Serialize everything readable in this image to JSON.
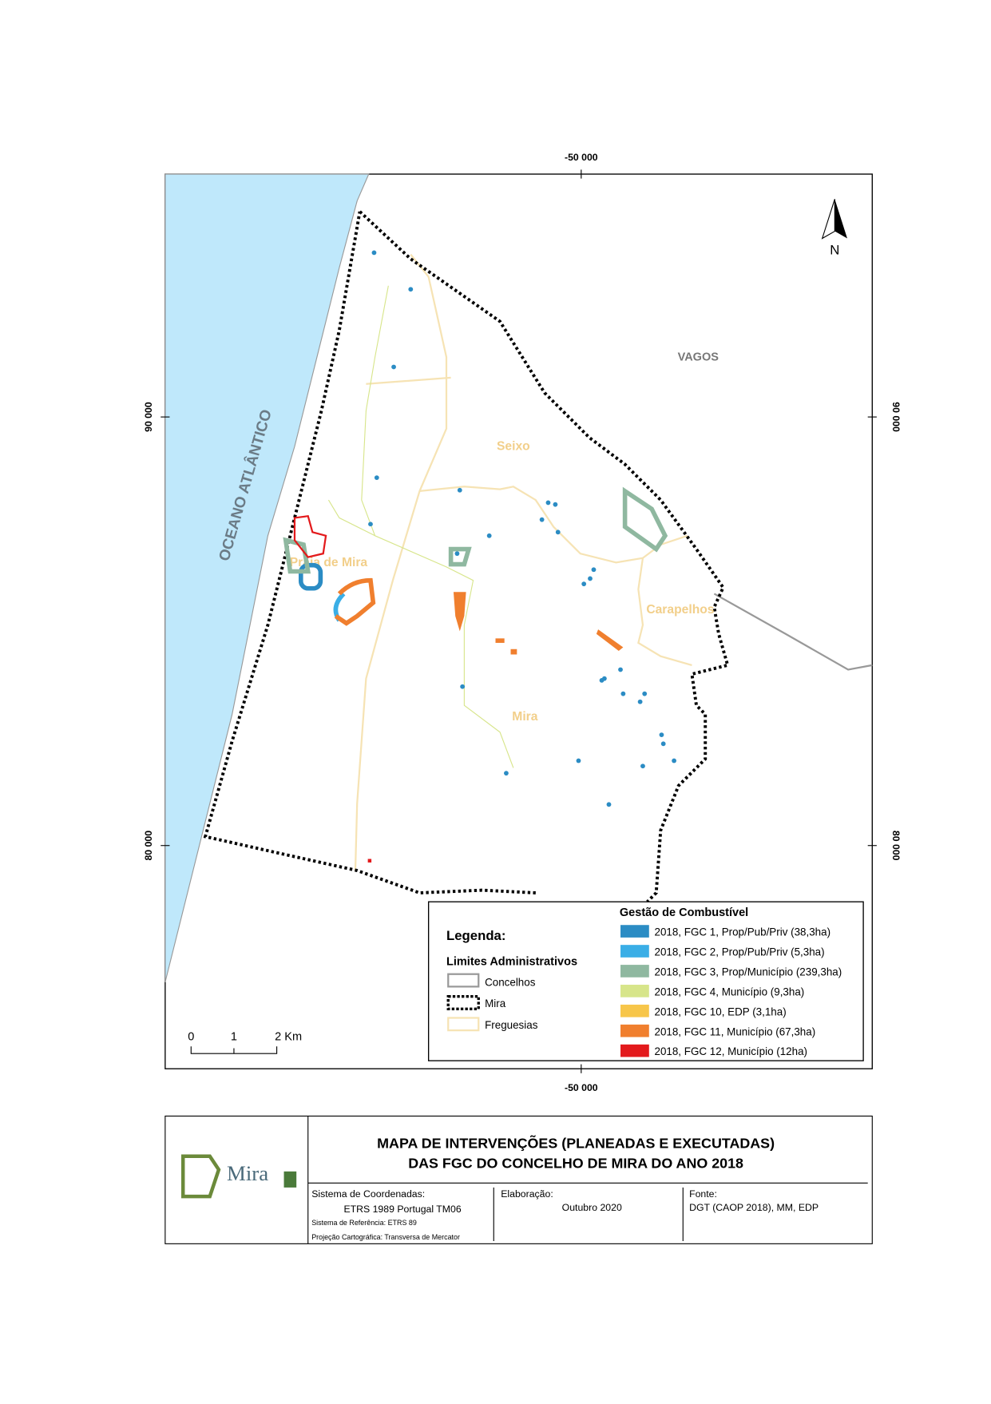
{
  "map": {
    "coordinate_labels": {
      "top": "-50 000",
      "bottom": "-50 000",
      "left": [
        "90 000",
        "80 000"
      ],
      "right": [
        "90 000",
        "80 000"
      ]
    },
    "places": {
      "ocean": "OCEANO ATLÂNTICO",
      "vagos": "VAGOS",
      "seixo": "Seixo",
      "praia": "Praia de Mira",
      "carapelhos": "Carapelhos",
      "mira": "Mira"
    },
    "north": "N",
    "scale_bar": [
      "0",
      "1",
      "2 Km"
    ]
  },
  "legend": {
    "title": "Legenda:",
    "admin_title": "Limites Administrativos",
    "admin_items": [
      "Concelhos",
      "Mira",
      "Freguesias"
    ],
    "fuel_title": "Gestão de Combustível",
    "fuel_items": [
      {
        "label": "2018, FGC 1, Prop/Pub/Priv (38,3ha)",
        "color": "#2b8cc4"
      },
      {
        "label": "2018, FGC 2, Prop/Pub/Priv (5,3ha)",
        "color": "#3aaee6"
      },
      {
        "label": "2018, FGC 3, Prop/Município (239,3ha)",
        "color": "#8fb8a0"
      },
      {
        "label": "2018, FGC 4, Município (9,3ha)",
        "color": "#d7e58a"
      },
      {
        "label": "2018, FGC 10, EDP (3,1ha)",
        "color": "#f7c64a"
      },
      {
        "label": "2018, FGC 11, Município (67,3ha)",
        "color": "#f07f2e"
      },
      {
        "label": "2018, FGC 12, Município (12ha)",
        "color": "#e31a1c"
      }
    ]
  },
  "title_block": {
    "title_lines": [
      "MAPA DE INTERVENÇÕES (PLANEADAS E EXECUTADAS)",
      "DAS FGC DO CONCELHO DE MIRA DO ANO 2018"
    ],
    "logo_text": "Mira",
    "coordinate_system": {
      "label": "Sistema de Coordenadas:",
      "value": "ETRS 1989 Portugal TM06",
      "reference": "Sistema de Referência: ETRS 89",
      "projection": "Projeção Cartográfica: Transversa de Mercator"
    },
    "elaboration": {
      "label": "Elaboração:",
      "value": "Outubro 2020"
    },
    "source": {
      "label": "Fonte:",
      "value": "DGT (CAOP 2018), MM, EDP"
    }
  }
}
